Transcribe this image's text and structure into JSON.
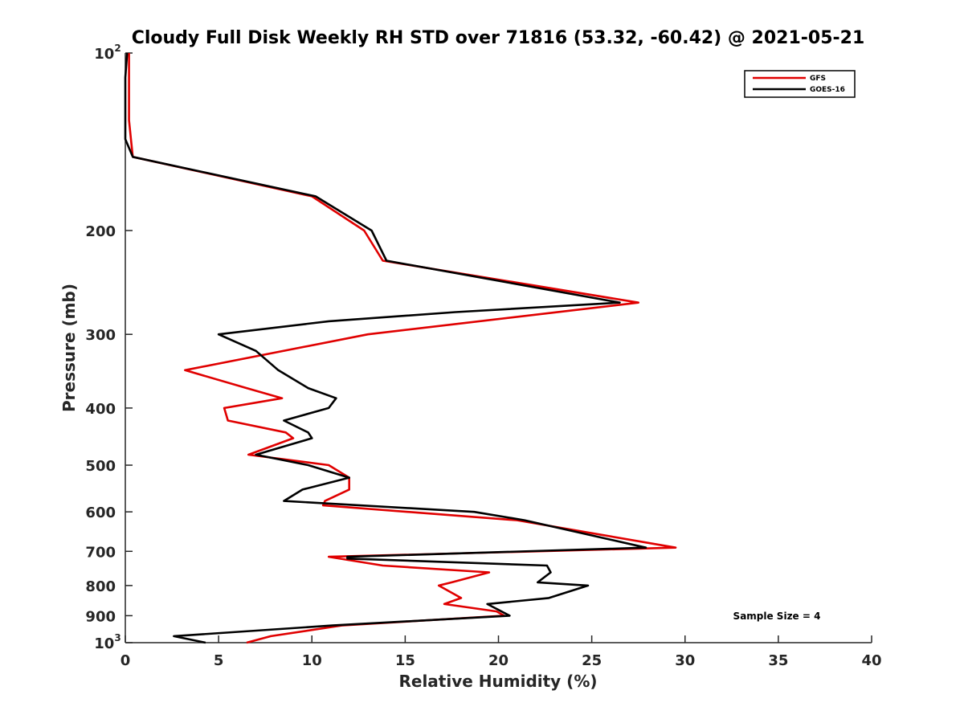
{
  "chart_data": {
    "type": "line",
    "title": "Cloudy Full Disk Weekly RH STD over 71816 (53.32, -60.42) @ 2021-05-21",
    "xlabel": "Relative Humidity (%)",
    "ylabel": "Pressure (mb)",
    "xlim": [
      0,
      40
    ],
    "ylim": [
      100,
      1000
    ],
    "y_scale": "log",
    "y_reversed": true,
    "grid": false,
    "legend_position": "top-right",
    "x_ticks": [
      "0",
      "5",
      "10",
      "15",
      "20",
      "25",
      "30",
      "35",
      "40"
    ],
    "y_ticks": [
      {
        "value": 100,
        "base": "10",
        "exp": "2"
      },
      {
        "value": 200,
        "label": "200"
      },
      {
        "value": 300,
        "label": "300"
      },
      {
        "value": 400,
        "label": "400"
      },
      {
        "value": 500,
        "label": "500"
      },
      {
        "value": 600,
        "label": "600"
      },
      {
        "value": 700,
        "label": "700"
      },
      {
        "value": 800,
        "label": "800"
      },
      {
        "value": 900,
        "label": "900"
      },
      {
        "value": 1000,
        "base": "10",
        "exp": "3"
      }
    ],
    "series": [
      {
        "name": "GFS",
        "color": "#e00000",
        "points": [
          [
            0.2,
            100
          ],
          [
            0.2,
            110
          ],
          [
            0.2,
            120
          ],
          [
            0.2,
            130
          ],
          [
            0.3,
            140
          ],
          [
            0.4,
            150
          ],
          [
            10.0,
            175
          ],
          [
            12.8,
            200
          ],
          [
            13.8,
            225
          ],
          [
            27.5,
            265
          ],
          [
            13.0,
            300
          ],
          [
            3.2,
            345
          ],
          [
            6.5,
            370
          ],
          [
            8.4,
            385
          ],
          [
            5.3,
            400
          ],
          [
            5.5,
            420
          ],
          [
            8.6,
            440
          ],
          [
            9.0,
            450
          ],
          [
            6.6,
            480
          ],
          [
            10.9,
            500
          ],
          [
            12.0,
            525
          ],
          [
            12.0,
            550
          ],
          [
            10.7,
            575
          ],
          [
            10.6,
            585
          ],
          [
            21.0,
            620
          ],
          [
            29.5,
            690
          ],
          [
            10.9,
            715
          ],
          [
            13.8,
            740
          ],
          [
            19.5,
            760
          ],
          [
            17.5,
            790
          ],
          [
            16.8,
            800
          ],
          [
            18.0,
            840
          ],
          [
            17.1,
            860
          ],
          [
            19.9,
            885
          ],
          [
            20.3,
            900
          ],
          [
            11.6,
            935
          ],
          [
            7.8,
            975
          ],
          [
            6.5,
            1000
          ]
        ]
      },
      {
        "name": "GOES-16",
        "color": "#000000",
        "points": [
          [
            0.1,
            100
          ],
          [
            0.0,
            110
          ],
          [
            0.0,
            120
          ],
          [
            0.0,
            130
          ],
          [
            0.0,
            140
          ],
          [
            0.4,
            150
          ],
          [
            10.2,
            175
          ],
          [
            13.2,
            200
          ],
          [
            14.0,
            225
          ],
          [
            26.5,
            265
          ],
          [
            17.7,
            275
          ],
          [
            10.9,
            285
          ],
          [
            5.0,
            300
          ],
          [
            7.0,
            320
          ],
          [
            8.2,
            345
          ],
          [
            9.8,
            370
          ],
          [
            11.3,
            385
          ],
          [
            10.9,
            400
          ],
          [
            8.5,
            420
          ],
          [
            9.8,
            440
          ],
          [
            10.0,
            450
          ],
          [
            7.0,
            480
          ],
          [
            9.8,
            500
          ],
          [
            12.0,
            525
          ],
          [
            9.5,
            550
          ],
          [
            8.5,
            575
          ],
          [
            18.7,
            600
          ],
          [
            21.4,
            620
          ],
          [
            27.9,
            690
          ],
          [
            11.9,
            715
          ],
          [
            11.9,
            720
          ],
          [
            22.6,
            740
          ],
          [
            22.8,
            760
          ],
          [
            22.1,
            790
          ],
          [
            24.8,
            800
          ],
          [
            22.7,
            840
          ],
          [
            19.4,
            860
          ],
          [
            20.6,
            900
          ],
          [
            11.1,
            935
          ],
          [
            2.6,
            975
          ],
          [
            4.3,
            1000
          ]
        ]
      }
    ],
    "annotations": [
      "Sample Size = 4"
    ]
  }
}
